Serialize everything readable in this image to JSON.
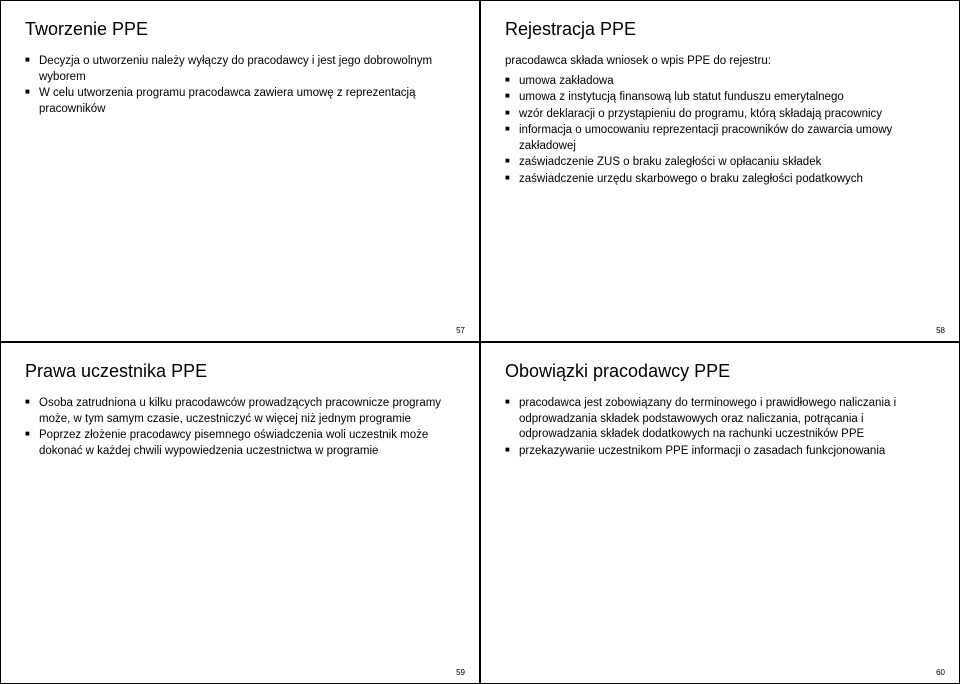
{
  "slides": [
    {
      "title": "Tworzenie PPE",
      "intro": "",
      "items": [
        "Decyzja o utworzeniu należy wyłączy do pracodawcy i jest jego dobrowolnym wyborem",
        "W celu utworzenia programu pracodawca zawiera umowę z reprezentacją pracowników"
      ],
      "page": "57"
    },
    {
      "title": "Rejestracja PPE",
      "intro": "pracodawca składa wniosek o wpis PPE do rejestru:",
      "items": [
        "umowa zakładowa",
        "umowa z instytucją finansową lub statut funduszu emerytalnego",
        "wzór deklaracji o przystąpieniu do programu, którą składają pracownicy",
        "informacja o umocowaniu reprezentacji pracowników do zawarcia umowy zakładowej",
        "zaświadczenie ZUS o braku zaległości w opłacaniu składek",
        "zaświadczenie urzędu skarbowego o braku zaległości podatkowych"
      ],
      "page": "58"
    },
    {
      "title": "Prawa uczestnika PPE",
      "intro": "",
      "items": [
        "Osoba zatrudniona u kilku pracodawców prowadzących pracownicze programy może, w tym samym czasie, uczestniczyć w więcej niż jednym programie",
        "Poprzez złożenie pracodawcy pisemnego oświadczenia woli uczestnik może dokonać w każdej chwili wypowiedzenia uczestnictwa w programie"
      ],
      "page": "59"
    },
    {
      "title": "Obowiązki pracodawcy PPE",
      "intro": "",
      "items": [
        "pracodawca jest zobowiązany do terminowego i prawidłowego naliczania i odprowadzania składek podstawowych oraz naliczania, potrącania i odprowadzania składek dodatkowych na rachunki uczestników PPE",
        "przekazywanie uczestnikom PPE informacji o zasadach funkcjonowania"
      ],
      "page": "60"
    }
  ]
}
